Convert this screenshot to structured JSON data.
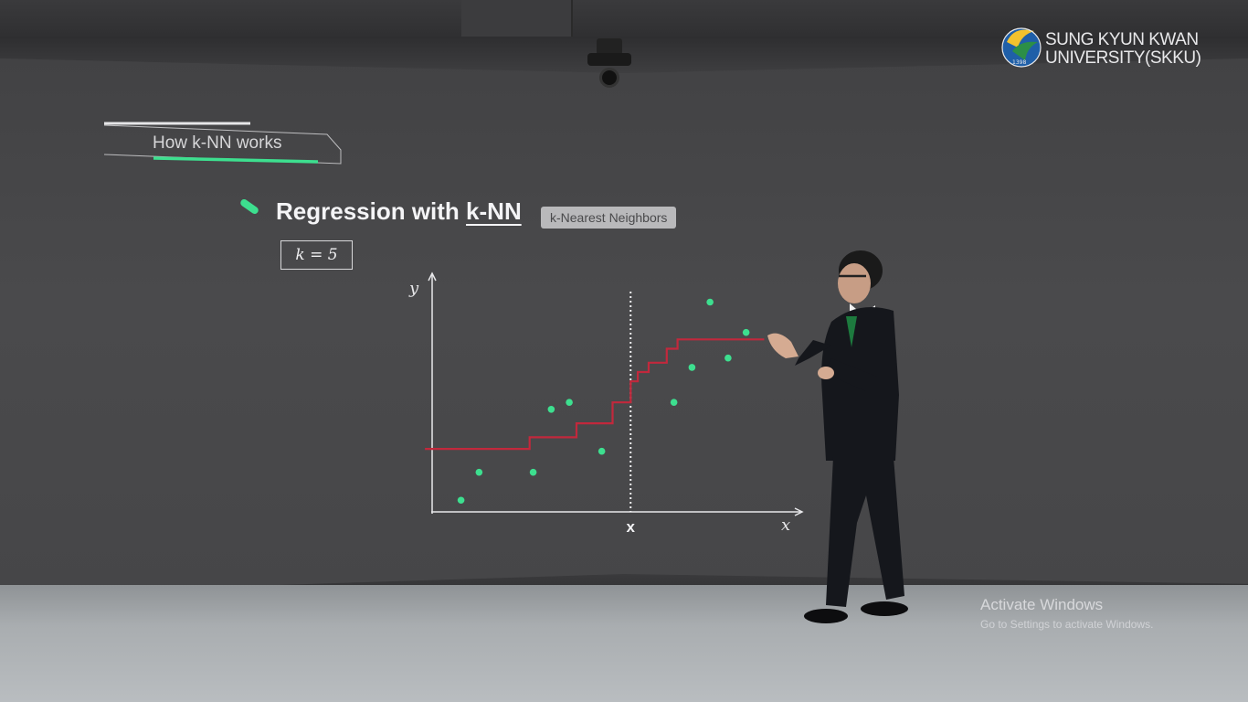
{
  "brand": {
    "logo_line1": "SUNG KYUN KWAN",
    "logo_line2": "UNIVERSITY(SKKU)",
    "logo_year": "1398"
  },
  "slide": {
    "section_title": "How k-NN works",
    "heading_prefix": "Regression with ",
    "heading_term": "k-NN",
    "badge": "k-Nearest Neighbors",
    "k_label": "k = 5",
    "accent_color": "#3ddf8f",
    "fit_color": "#c2283c"
  },
  "chart_data": {
    "type": "scatter",
    "xlabel": "x",
    "ylabel": "y",
    "query_label": "x",
    "query_x": 0.55,
    "points": [
      {
        "x": 0.08,
        "y": 0.05
      },
      {
        "x": 0.13,
        "y": 0.17
      },
      {
        "x": 0.28,
        "y": 0.17
      },
      {
        "x": 0.33,
        "y": 0.44
      },
      {
        "x": 0.38,
        "y": 0.47
      },
      {
        "x": 0.47,
        "y": 0.26
      },
      {
        "x": 0.67,
        "y": 0.47
      },
      {
        "x": 0.72,
        "y": 0.62
      },
      {
        "x": 0.77,
        "y": 0.9
      },
      {
        "x": 0.82,
        "y": 0.66
      },
      {
        "x": 0.87,
        "y": 0.77
      }
    ],
    "knn_fit": [
      {
        "x": -0.02,
        "y": 0.27
      },
      {
        "x": 0.27,
        "y": 0.27
      },
      {
        "x": 0.27,
        "y": 0.32
      },
      {
        "x": 0.4,
        "y": 0.32
      },
      {
        "x": 0.4,
        "y": 0.38
      },
      {
        "x": 0.5,
        "y": 0.38
      },
      {
        "x": 0.5,
        "y": 0.47
      },
      {
        "x": 0.55,
        "y": 0.47
      },
      {
        "x": 0.55,
        "y": 0.56
      },
      {
        "x": 0.57,
        "y": 0.56
      },
      {
        "x": 0.57,
        "y": 0.6
      },
      {
        "x": 0.6,
        "y": 0.6
      },
      {
        "x": 0.6,
        "y": 0.64
      },
      {
        "x": 0.65,
        "y": 0.64
      },
      {
        "x": 0.65,
        "y": 0.7
      },
      {
        "x": 0.68,
        "y": 0.7
      },
      {
        "x": 0.68,
        "y": 0.74
      },
      {
        "x": 0.92,
        "y": 0.74
      }
    ],
    "xlim": [
      0,
      1
    ],
    "ylim": [
      0,
      1
    ]
  },
  "watermark": {
    "title": "Activate Windows",
    "subtitle": "Go to Settings to activate Windows."
  }
}
